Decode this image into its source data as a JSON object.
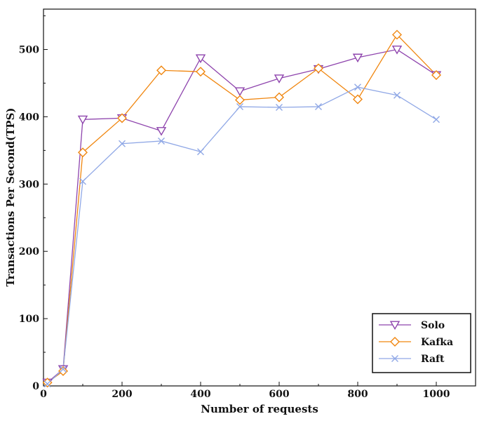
{
  "chart_data": {
    "type": "line",
    "title": "",
    "xlabel": "Number of requests",
    "ylabel": "Transactions Per Second(TPS)",
    "xlim": [
      0,
      1100
    ],
    "ylim": [
      0,
      560
    ],
    "xticks": [
      0,
      200,
      400,
      600,
      800,
      1000
    ],
    "yticks": [
      0,
      100,
      200,
      300,
      400,
      500
    ],
    "grid": false,
    "legend_position": "bottom-right",
    "x": [
      10,
      50,
      100,
      200,
      300,
      400,
      500,
      600,
      700,
      800,
      900,
      1000
    ],
    "series": [
      {
        "name": "Solo",
        "color": "#8e44ad",
        "marker": "triangle-down",
        "values": [
          5,
          25,
          396,
          398,
          379,
          487,
          438,
          457,
          471,
          488,
          500,
          462
        ]
      },
      {
        "name": "Kafka",
        "color": "#f0860f",
        "marker": "diamond",
        "values": [
          5,
          22,
          347,
          398,
          469,
          467,
          425,
          429,
          472,
          426,
          522,
          462
        ]
      },
      {
        "name": "Raft",
        "color": "#90a8e6",
        "marker": "x",
        "values": [
          3,
          25,
          304,
          360,
          364,
          348,
          415,
          414,
          415,
          444,
          432,
          396
        ]
      }
    ]
  }
}
